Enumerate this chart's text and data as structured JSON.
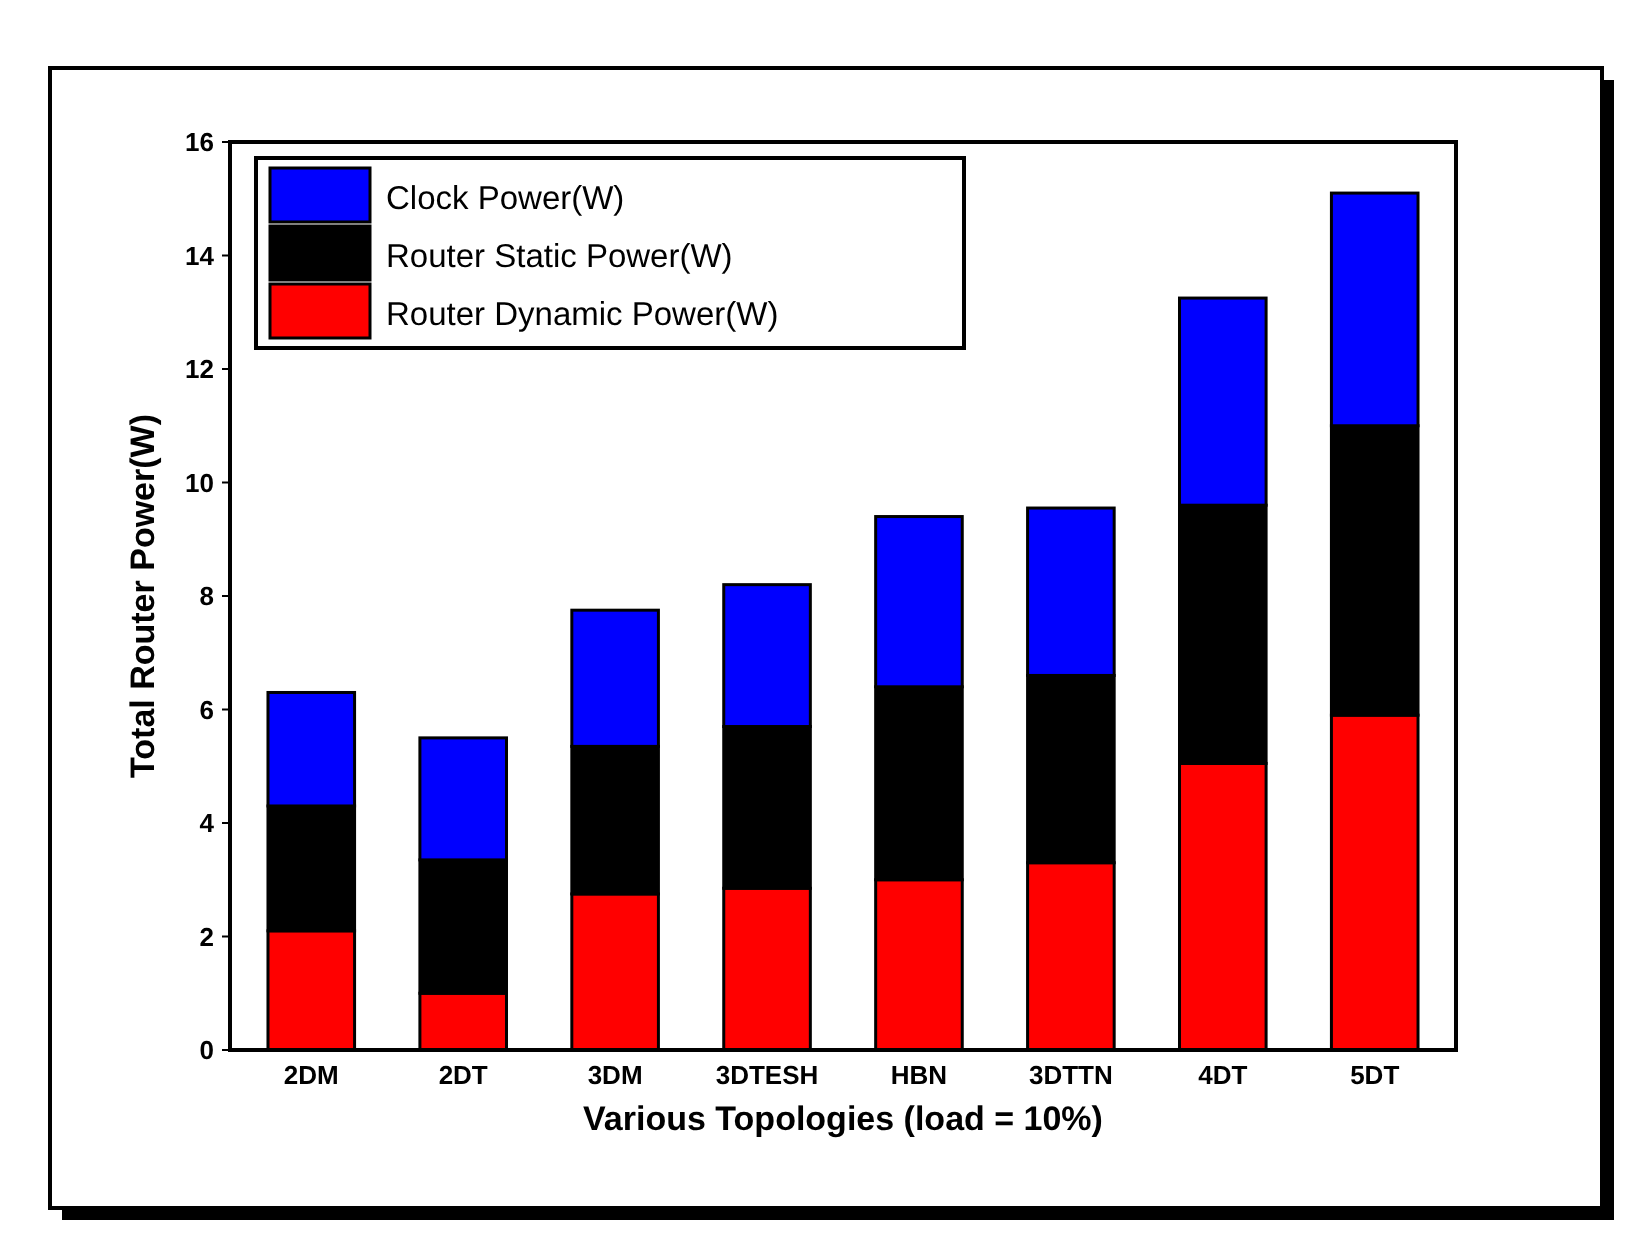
{
  "chart_data": {
    "type": "bar",
    "stacked": true,
    "xlabel": "Various Topologies (load = 10%)",
    "ylabel": "Total Router Power(W)",
    "categories": [
      "2DM",
      "2DT",
      "3DM",
      "3DTESH",
      "HBN",
      "3DTTN",
      "4DT",
      "5DT"
    ],
    "series": [
      {
        "name": "Router Dynamic Power(W)",
        "color": "#ff0000",
        "values": [
          2.1,
          1.0,
          2.75,
          2.85,
          3.0,
          3.3,
          5.05,
          5.9
        ]
      },
      {
        "name": "Router Static Power(W)",
        "color": "#000000",
        "values": [
          2.2,
          2.35,
          2.6,
          2.85,
          3.4,
          3.3,
          4.55,
          5.1
        ]
      },
      {
        "name": "Clock Power(W)",
        "color": "#0000ff",
        "values": [
          2.0,
          2.15,
          2.4,
          2.5,
          3.0,
          2.95,
          3.65,
          4.1
        ]
      }
    ],
    "ylim": [
      0,
      16
    ],
    "yticks": [
      0,
      2,
      4,
      6,
      8,
      10,
      12,
      14,
      16
    ],
    "grid": false,
    "legend": "top left"
  }
}
